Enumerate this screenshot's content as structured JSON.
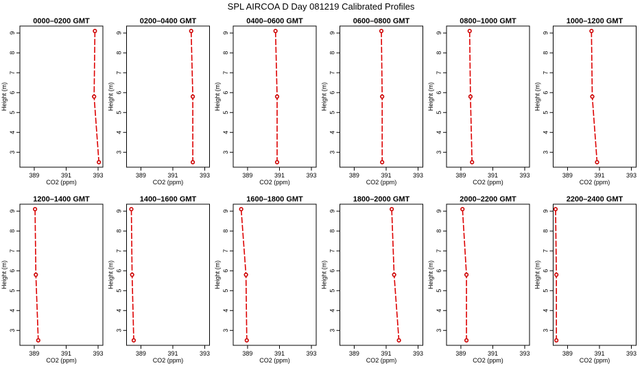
{
  "figure": {
    "title": "SPL AIRCOA D  Day 081219  Calibrated Profiles"
  },
  "colors": {
    "line": "#dd0000",
    "point": "#cc0000",
    "background": "#ffffff",
    "frame": "#000000"
  },
  "chart_data": [
    {
      "type": "line",
      "title": "0000–0200 GMT",
      "xlabel": "CO2 (ppm)",
      "ylabel": "Height (m)",
      "xlim": [
        388.1,
        393.3
      ],
      "ylim": [
        2.25,
        9.35
      ],
      "xticks": [
        389,
        391,
        393
      ],
      "yticks": [
        3,
        4,
        5,
        6,
        7,
        8,
        9
      ],
      "grid": false,
      "legend": "none",
      "series": [
        {
          "x": [
            392.8,
            392.75,
            393.05
          ],
          "y": [
            9.1,
            5.8,
            2.5
          ]
        }
      ]
    },
    {
      "type": "line",
      "title": "0200–0400 GMT",
      "xlabel": "CO2 (ppm)",
      "ylabel": "Height (m)",
      "xlim": [
        388.1,
        393.3
      ],
      "ylim": [
        2.25,
        9.35
      ],
      "xticks": [
        389,
        391,
        393
      ],
      "yticks": [
        3,
        4,
        5,
        6,
        7,
        8,
        9
      ],
      "grid": false,
      "legend": "none",
      "series": [
        {
          "x": [
            392.15,
            392.25,
            392.25
          ],
          "y": [
            9.1,
            5.8,
            2.5
          ]
        }
      ]
    },
    {
      "type": "line",
      "title": "0400–0600 GMT",
      "xlabel": "CO2 (ppm)",
      "ylabel": "Height (m)",
      "xlim": [
        388.1,
        393.3
      ],
      "ylim": [
        2.25,
        9.35
      ],
      "xticks": [
        389,
        391,
        393
      ],
      "yticks": [
        3,
        4,
        5,
        6,
        7,
        8,
        9
      ],
      "grid": false,
      "legend": "none",
      "series": [
        {
          "x": [
            390.75,
            390.85,
            390.85
          ],
          "y": [
            9.1,
            5.8,
            2.5
          ]
        }
      ]
    },
    {
      "type": "line",
      "title": "0600–0800 GMT",
      "xlabel": "CO2 (ppm)",
      "ylabel": "Height (m)",
      "xlim": [
        388.1,
        393.3
      ],
      "ylim": [
        2.25,
        9.35
      ],
      "xticks": [
        389,
        391,
        393
      ],
      "yticks": [
        3,
        4,
        5,
        6,
        7,
        8,
        9
      ],
      "grid": false,
      "legend": "none",
      "series": [
        {
          "x": [
            390.7,
            390.75,
            390.75
          ],
          "y": [
            9.1,
            5.8,
            2.5
          ]
        }
      ]
    },
    {
      "type": "line",
      "title": "0800–1000 GMT",
      "xlabel": "CO2 (ppm)",
      "ylabel": "Height (m)",
      "xlim": [
        388.1,
        393.3
      ],
      "ylim": [
        2.25,
        9.35
      ],
      "xticks": [
        389,
        391,
        393
      ],
      "yticks": [
        3,
        4,
        5,
        6,
        7,
        8,
        9
      ],
      "grid": false,
      "legend": "none",
      "series": [
        {
          "x": [
            389.55,
            389.6,
            389.7
          ],
          "y": [
            9.1,
            5.8,
            2.5
          ]
        }
      ]
    },
    {
      "type": "line",
      "title": "1000–1200 GMT",
      "xlabel": "CO2 (ppm)",
      "ylabel": "Height (m)",
      "xlim": [
        388.1,
        393.3
      ],
      "ylim": [
        2.25,
        9.35
      ],
      "xticks": [
        389,
        391,
        393
      ],
      "yticks": [
        3,
        4,
        5,
        6,
        7,
        8,
        9
      ],
      "grid": false,
      "legend": "none",
      "series": [
        {
          "x": [
            390.5,
            390.55,
            390.85
          ],
          "y": [
            9.1,
            5.8,
            2.5
          ]
        }
      ]
    },
    {
      "type": "line",
      "title": "1200–1400 GMT",
      "xlabel": "CO2 (ppm)",
      "ylabel": "Height (m)",
      "xlim": [
        388.1,
        393.3
      ],
      "ylim": [
        2.25,
        9.35
      ],
      "xticks": [
        389,
        391,
        393
      ],
      "yticks": [
        3,
        4,
        5,
        6,
        7,
        8,
        9
      ],
      "grid": false,
      "legend": "none",
      "series": [
        {
          "x": [
            389.05,
            389.1,
            389.25
          ],
          "y": [
            9.1,
            5.8,
            2.5
          ]
        }
      ]
    },
    {
      "type": "line",
      "title": "1400–1600 GMT",
      "xlabel": "CO2 (ppm)",
      "ylabel": "Height (m)",
      "xlim": [
        388.1,
        393.3
      ],
      "ylim": [
        2.25,
        9.35
      ],
      "xticks": [
        389,
        391,
        393
      ],
      "yticks": [
        3,
        4,
        5,
        6,
        7,
        8,
        9
      ],
      "grid": false,
      "legend": "none",
      "series": [
        {
          "x": [
            388.4,
            388.45,
            388.55
          ],
          "y": [
            9.1,
            5.8,
            2.5
          ]
        }
      ]
    },
    {
      "type": "line",
      "title": "1600–1800 GMT",
      "xlabel": "CO2 (ppm)",
      "ylabel": "Height (m)",
      "xlim": [
        388.1,
        393.3
      ],
      "ylim": [
        2.25,
        9.35
      ],
      "xticks": [
        389,
        391,
        393
      ],
      "yticks": [
        3,
        4,
        5,
        6,
        7,
        8,
        9
      ],
      "grid": false,
      "legend": "none",
      "series": [
        {
          "x": [
            388.6,
            388.9,
            388.95
          ],
          "y": [
            9.1,
            5.8,
            2.5
          ]
        }
      ]
    },
    {
      "type": "line",
      "title": "1800–2000 GMT",
      "xlabel": "CO2 (ppm)",
      "ylabel": "Height (m)",
      "xlim": [
        388.1,
        393.3
      ],
      "ylim": [
        2.25,
        9.35
      ],
      "xticks": [
        389,
        391,
        393
      ],
      "yticks": [
        3,
        4,
        5,
        6,
        7,
        8,
        9
      ],
      "grid": false,
      "legend": "none",
      "series": [
        {
          "x": [
            391.35,
            391.5,
            391.8
          ],
          "y": [
            9.1,
            5.8,
            2.5
          ]
        }
      ]
    },
    {
      "type": "line",
      "title": "2000–2200 GMT",
      "xlabel": "CO2 (ppm)",
      "ylabel": "Height (m)",
      "xlim": [
        388.1,
        393.3
      ],
      "ylim": [
        2.25,
        9.35
      ],
      "xticks": [
        389,
        391,
        393
      ],
      "yticks": [
        3,
        4,
        5,
        6,
        7,
        8,
        9
      ],
      "grid": false,
      "legend": "none",
      "series": [
        {
          "x": [
            389.1,
            389.35,
            389.35
          ],
          "y": [
            9.1,
            5.8,
            2.5
          ]
        }
      ]
    },
    {
      "type": "line",
      "title": "2200–2400 GMT",
      "xlabel": "CO2 (ppm)",
      "ylabel": "Height (m)",
      "xlim": [
        388.1,
        393.3
      ],
      "ylim": [
        2.25,
        9.35
      ],
      "xticks": [
        389,
        391,
        393
      ],
      "yticks": [
        3,
        4,
        5,
        6,
        7,
        8,
        9
      ],
      "grid": false,
      "legend": "none",
      "series": [
        {
          "x": [
            388.25,
            388.3,
            388.3
          ],
          "y": [
            9.1,
            5.8,
            2.5
          ]
        }
      ]
    }
  ]
}
